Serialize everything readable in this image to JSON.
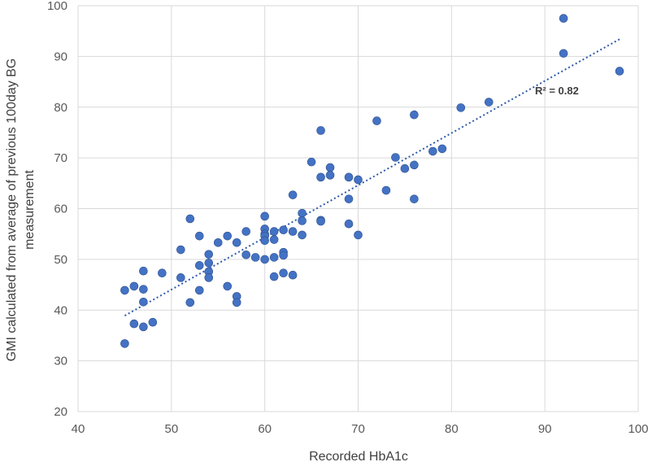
{
  "chart_data": {
    "type": "scatter",
    "xlabel": "Recorded HbA1c",
    "ylabel_lines": [
      "GMI calculated from average of previous 100day BG",
      "measurement"
    ],
    "xlim": [
      40,
      100
    ],
    "ylim": [
      20,
      100
    ],
    "xticks": [
      "40",
      "50",
      "60",
      "70",
      "80",
      "90",
      "100"
    ],
    "yticks": [
      "20",
      "30",
      "40",
      "50",
      "60",
      "70",
      "80",
      "90",
      "100"
    ],
    "grid": true,
    "trendline": {
      "type": "linear",
      "x": [
        45,
        98
      ],
      "y": [
        38.9,
        93.4
      ],
      "r2_label": "R² = 0.82"
    },
    "points": [
      [
        45,
        33.4
      ],
      [
        45,
        43.9
      ],
      [
        46,
        44.7
      ],
      [
        46,
        37.3
      ],
      [
        47,
        47.7
      ],
      [
        47,
        44.1
      ],
      [
        47,
        41.6
      ],
      [
        47,
        36.7
      ],
      [
        48,
        37.6
      ],
      [
        49,
        47.3
      ],
      [
        51,
        51.9
      ],
      [
        51,
        46.4
      ],
      [
        52,
        58.0
      ],
      [
        52,
        41.5
      ],
      [
        53,
        54.6
      ],
      [
        53,
        48.8
      ],
      [
        53,
        43.9
      ],
      [
        54,
        51.0
      ],
      [
        54,
        49.3
      ],
      [
        54,
        47.6
      ],
      [
        54,
        46.4
      ],
      [
        55,
        53.3
      ],
      [
        56,
        54.6
      ],
      [
        56,
        44.7
      ],
      [
        57,
        53.3
      ],
      [
        57,
        42.7
      ],
      [
        57,
        41.5
      ],
      [
        58,
        55.5
      ],
      [
        58,
        50.9
      ],
      [
        59,
        50.4
      ],
      [
        60,
        58.5
      ],
      [
        60,
        56.0
      ],
      [
        60,
        55.0
      ],
      [
        60,
        54.6
      ],
      [
        60,
        53.7
      ],
      [
        60,
        50.0
      ],
      [
        61,
        55.5
      ],
      [
        61,
        53.9
      ],
      [
        61,
        50.4
      ],
      [
        61,
        46.6
      ],
      [
        62,
        55.8
      ],
      [
        62,
        51.4
      ],
      [
        62,
        50.8
      ],
      [
        62,
        47.3
      ],
      [
        63,
        62.7
      ],
      [
        63,
        55.5
      ],
      [
        63,
        46.9
      ],
      [
        64,
        59.1
      ],
      [
        64,
        57.6
      ],
      [
        64,
        54.8
      ],
      [
        65,
        69.2
      ],
      [
        66,
        75.4
      ],
      [
        66,
        66.2
      ],
      [
        66,
        57.7
      ],
      [
        66,
        57.5
      ],
      [
        67,
        68.1
      ],
      [
        67,
        66.6
      ],
      [
        69,
        66.2
      ],
      [
        69,
        61.9
      ],
      [
        69,
        57.0
      ],
      [
        70,
        65.7
      ],
      [
        70,
        54.8
      ],
      [
        72,
        77.3
      ],
      [
        73,
        63.6
      ],
      [
        74,
        70.1
      ],
      [
        75,
        67.9
      ],
      [
        76,
        78.5
      ],
      [
        76,
        68.6
      ],
      [
        76,
        61.9
      ],
      [
        78,
        71.3
      ],
      [
        79,
        71.8
      ],
      [
        81,
        79.9
      ],
      [
        84,
        81.0
      ],
      [
        92,
        97.5
      ],
      [
        92,
        90.6
      ],
      [
        98,
        87.1
      ]
    ],
    "colors": {
      "marker": "#4472c4",
      "marker_edge": "#2f528f",
      "trendline": "#2e5aa8",
      "grid": "#d9d9d9"
    }
  }
}
